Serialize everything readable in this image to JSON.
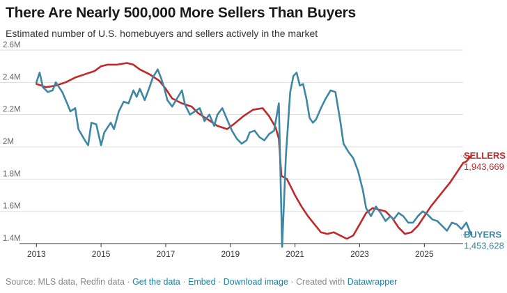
{
  "header": {
    "title": "There Are Nearly 500,000 More Sellers Than Buyers",
    "subtitle": "Estimated number of U.S. homebuyers and sellers actively in the market"
  },
  "footer": {
    "source": "Source: MLS data, Redfin data",
    "sep": "·",
    "get_data": "Get the data",
    "embed": "Embed",
    "download": "Download image",
    "created_with": "Created with",
    "datawrapper": "Datawrapper"
  },
  "colors": {
    "sellers": "#c0292a",
    "buyers": "#3d86a4",
    "grid": "#dddddd",
    "axis": "#333333",
    "tick_text": "#666666"
  },
  "chart_data": {
    "type": "line",
    "title": "There Are Nearly 500,000 More Sellers Than Buyers",
    "subtitle": "Estimated number of U.S. homebuyers and sellers actively in the market",
    "xlim": [
      2012.8,
      2026.2
    ],
    "ylim": [
      1.4,
      2.6
    ],
    "x_ticks": [
      2013,
      2015,
      2017,
      2019,
      2021,
      2023,
      2025
    ],
    "x_tick_labels": [
      "2013",
      "2015",
      "2017",
      "2019",
      "2021",
      "2023",
      "2025"
    ],
    "y_ticks": [
      1.4,
      1.6,
      1.8,
      2.0,
      2.2,
      2.4,
      2.6
    ],
    "y_tick_labels": [
      "1.4M",
      "1.6M",
      "1.8M",
      "2M",
      "2.2M",
      "2.4M",
      "2.6M"
    ],
    "grid": true,
    "legend": "end-of-line labels",
    "series": [
      {
        "name": "SELLERS",
        "end_label": "1,943,669",
        "color": "#c0292a",
        "points": [
          [
            2013.0,
            2.39
          ],
          [
            2013.3,
            2.37
          ],
          [
            2013.6,
            2.38
          ],
          [
            2013.9,
            2.4
          ],
          [
            2014.2,
            2.43
          ],
          [
            2014.5,
            2.45
          ],
          [
            2014.8,
            2.47
          ],
          [
            2015.0,
            2.5
          ],
          [
            2015.2,
            2.51
          ],
          [
            2015.5,
            2.51
          ],
          [
            2015.8,
            2.52
          ],
          [
            2016.0,
            2.51
          ],
          [
            2016.2,
            2.48
          ],
          [
            2016.5,
            2.45
          ],
          [
            2016.8,
            2.41
          ],
          [
            2017.0,
            2.36
          ],
          [
            2017.2,
            2.3
          ],
          [
            2017.5,
            2.27
          ],
          [
            2017.8,
            2.25
          ],
          [
            2018.0,
            2.21
          ],
          [
            2018.3,
            2.17
          ],
          [
            2018.6,
            2.13
          ],
          [
            2018.9,
            2.11
          ],
          [
            2019.1,
            2.14
          ],
          [
            2019.4,
            2.19
          ],
          [
            2019.7,
            2.23
          ],
          [
            2020.0,
            2.24
          ],
          [
            2020.2,
            2.19
          ],
          [
            2020.4,
            2.12
          ],
          [
            2020.5,
            2.05
          ],
          [
            2020.58,
            1.82
          ],
          [
            2020.75,
            1.8
          ],
          [
            2020.9,
            1.74
          ],
          [
            2021.0,
            1.7
          ],
          [
            2021.2,
            1.63
          ],
          [
            2021.4,
            1.57
          ],
          [
            2021.6,
            1.52
          ],
          [
            2021.8,
            1.47
          ],
          [
            2022.0,
            1.46
          ],
          [
            2022.2,
            1.47
          ],
          [
            2022.4,
            1.45
          ],
          [
            2022.6,
            1.43
          ],
          [
            2022.8,
            1.45
          ],
          [
            2023.0,
            1.52
          ],
          [
            2023.2,
            1.59
          ],
          [
            2023.4,
            1.62
          ],
          [
            2023.6,
            1.61
          ],
          [
            2023.8,
            1.6
          ],
          [
            2024.0,
            1.56
          ],
          [
            2024.2,
            1.5
          ],
          [
            2024.4,
            1.46
          ],
          [
            2024.6,
            1.47
          ],
          [
            2024.8,
            1.51
          ],
          [
            2025.0,
            1.57
          ],
          [
            2025.2,
            1.63
          ],
          [
            2025.4,
            1.68
          ],
          [
            2025.6,
            1.73
          ],
          [
            2025.8,
            1.78
          ],
          [
            2026.0,
            1.84
          ],
          [
            2026.2,
            1.9
          ],
          [
            2026.3,
            1.91
          ],
          [
            2026.45,
            1.944
          ]
        ]
      },
      {
        "name": "BUYERS",
        "end_label": "1,453,628",
        "color": "#3d86a4",
        "points": [
          [
            2013.0,
            2.4
          ],
          [
            2013.1,
            2.46
          ],
          [
            2013.2,
            2.37
          ],
          [
            2013.35,
            2.34
          ],
          [
            2013.5,
            2.35
          ],
          [
            2013.6,
            2.4
          ],
          [
            2013.8,
            2.34
          ],
          [
            2013.95,
            2.27
          ],
          [
            2014.05,
            2.22
          ],
          [
            2014.2,
            2.24
          ],
          [
            2014.3,
            2.11
          ],
          [
            2014.5,
            2.04
          ],
          [
            2014.6,
            2.01
          ],
          [
            2014.7,
            2.15
          ],
          [
            2014.85,
            2.14
          ],
          [
            2015.0,
            2.01
          ],
          [
            2015.1,
            2.09
          ],
          [
            2015.3,
            2.15
          ],
          [
            2015.4,
            2.11
          ],
          [
            2015.55,
            2.22
          ],
          [
            2015.7,
            2.28
          ],
          [
            2015.85,
            2.27
          ],
          [
            2016.0,
            2.35
          ],
          [
            2016.1,
            2.31
          ],
          [
            2016.2,
            2.36
          ],
          [
            2016.35,
            2.29
          ],
          [
            2016.5,
            2.37
          ],
          [
            2016.6,
            2.43
          ],
          [
            2016.75,
            2.48
          ],
          [
            2016.85,
            2.43
          ],
          [
            2016.95,
            2.37
          ],
          [
            2017.05,
            2.29
          ],
          [
            2017.2,
            2.25
          ],
          [
            2017.35,
            2.3
          ],
          [
            2017.5,
            2.35
          ],
          [
            2017.6,
            2.26
          ],
          [
            2017.75,
            2.2
          ],
          [
            2017.9,
            2.22
          ],
          [
            2018.05,
            2.24
          ],
          [
            2018.2,
            2.16
          ],
          [
            2018.35,
            2.2
          ],
          [
            2018.5,
            2.13
          ],
          [
            2018.6,
            2.2
          ],
          [
            2018.75,
            2.24
          ],
          [
            2018.9,
            2.17
          ],
          [
            2019.05,
            2.1
          ],
          [
            2019.2,
            2.05
          ],
          [
            2019.35,
            2.02
          ],
          [
            2019.5,
            2.04
          ],
          [
            2019.6,
            2.09
          ],
          [
            2019.75,
            2.1
          ],
          [
            2019.9,
            2.06
          ],
          [
            2020.05,
            2.04
          ],
          [
            2020.2,
            2.08
          ],
          [
            2020.35,
            2.1
          ],
          [
            2020.5,
            2.27
          ],
          [
            2020.6,
            1.38
          ],
          [
            2020.72,
            1.95
          ],
          [
            2020.85,
            2.34
          ],
          [
            2020.95,
            2.44
          ],
          [
            2021.05,
            2.46
          ],
          [
            2021.15,
            2.38
          ],
          [
            2021.25,
            2.39
          ],
          [
            2021.35,
            2.3
          ],
          [
            2021.45,
            2.18
          ],
          [
            2021.55,
            2.15
          ],
          [
            2021.65,
            2.17
          ],
          [
            2021.8,
            2.24
          ],
          [
            2021.95,
            2.3
          ],
          [
            2022.1,
            2.35
          ],
          [
            2022.25,
            2.34
          ],
          [
            2022.4,
            2.16
          ],
          [
            2022.5,
            2.02
          ],
          [
            2022.65,
            1.97
          ],
          [
            2022.8,
            1.93
          ],
          [
            2022.95,
            1.85
          ],
          [
            2023.1,
            1.73
          ],
          [
            2023.2,
            1.62
          ],
          [
            2023.35,
            1.57
          ],
          [
            2023.5,
            1.63
          ],
          [
            2023.65,
            1.59
          ],
          [
            2023.8,
            1.54
          ],
          [
            2023.95,
            1.57
          ],
          [
            2024.05,
            1.55
          ],
          [
            2024.2,
            1.59
          ],
          [
            2024.35,
            1.57
          ],
          [
            2024.5,
            1.53
          ],
          [
            2024.65,
            1.53
          ],
          [
            2024.8,
            1.57
          ],
          [
            2024.95,
            1.6
          ],
          [
            2025.1,
            1.58
          ],
          [
            2025.25,
            1.55
          ],
          [
            2025.4,
            1.54
          ],
          [
            2025.55,
            1.51
          ],
          [
            2025.7,
            1.48
          ],
          [
            2025.85,
            1.53
          ],
          [
            2026.0,
            1.52
          ],
          [
            2026.15,
            1.49
          ],
          [
            2026.3,
            1.53
          ],
          [
            2026.45,
            1.454
          ]
        ]
      }
    ]
  }
}
